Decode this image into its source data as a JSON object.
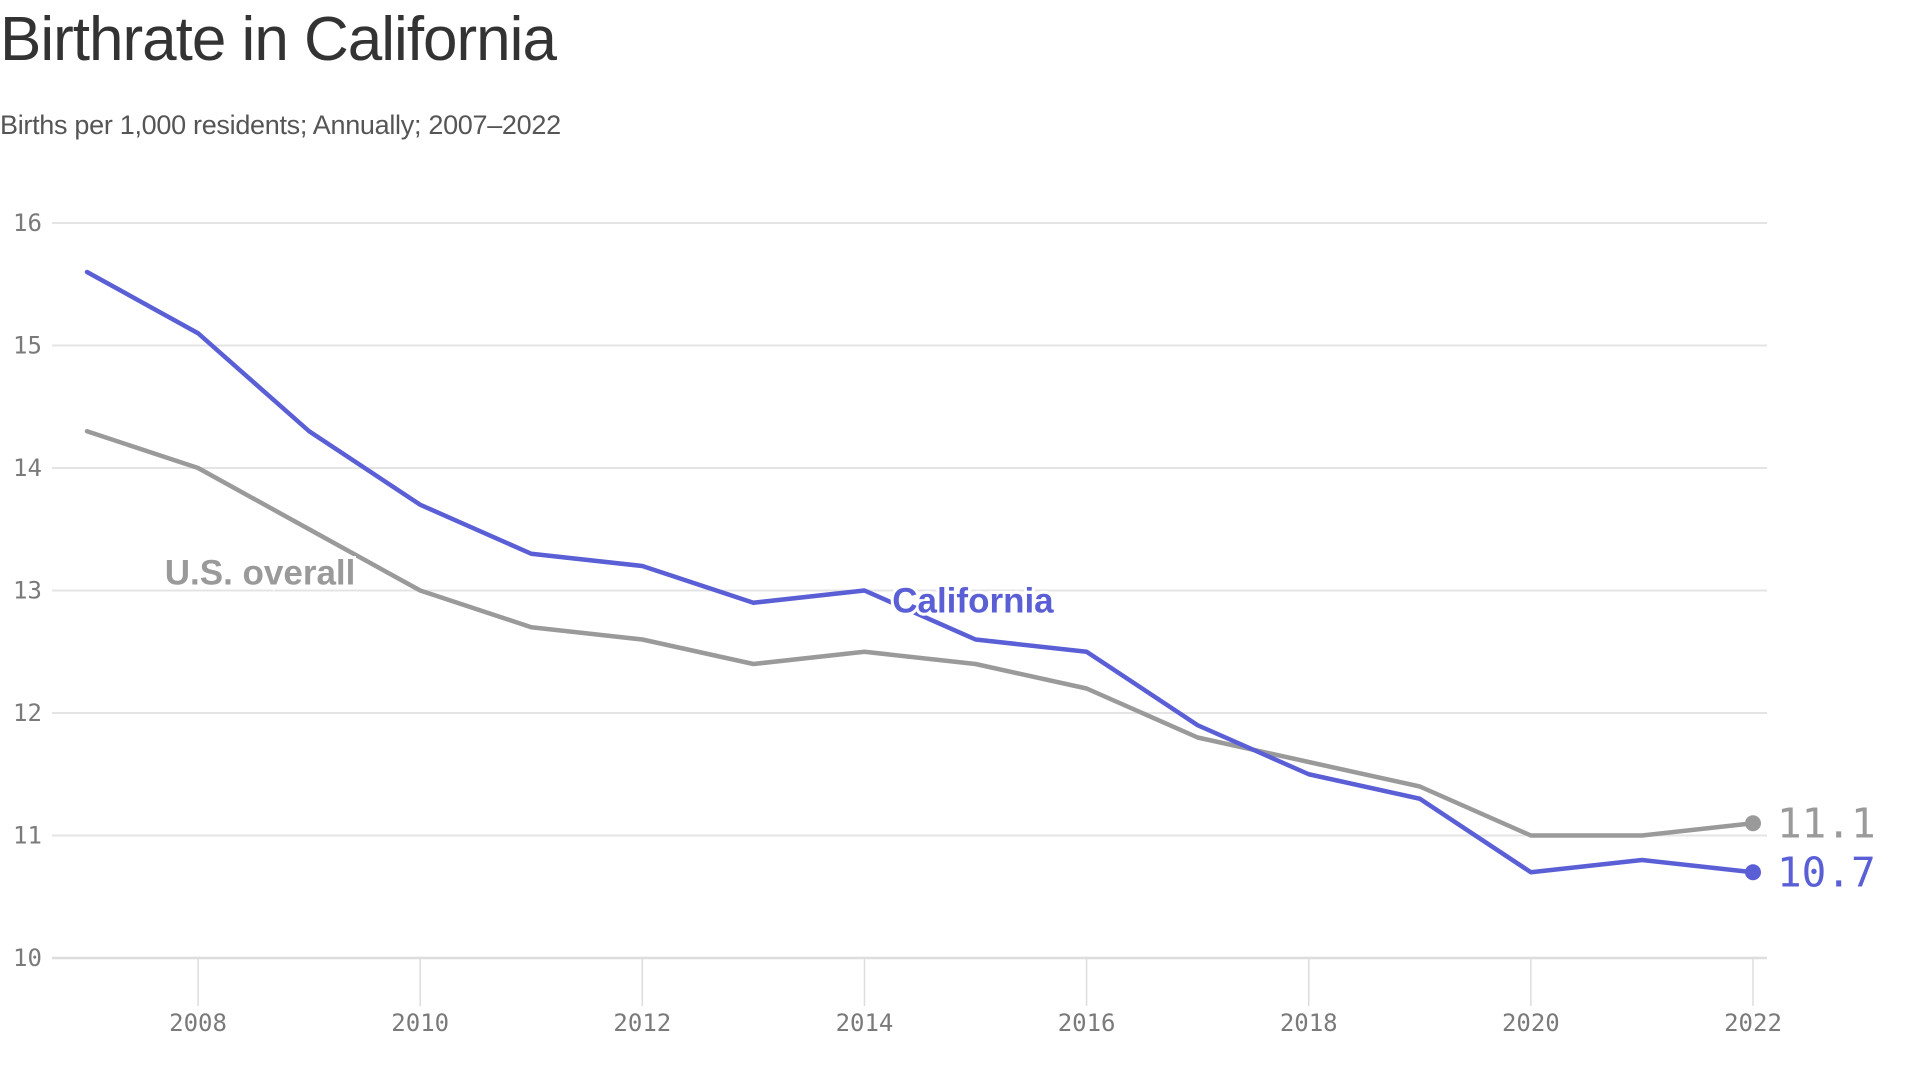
{
  "header": {
    "title": "Birthrate in California",
    "subtitle": "Births per 1,000 residents; Annually; 2007–2022"
  },
  "chart_data": {
    "type": "line",
    "title": "Birthrate in California",
    "subtitle": "Births per 1,000 residents; Annually; 2007–2022",
    "xlabel": "",
    "ylabel": "",
    "x": [
      2007,
      2008,
      2009,
      2010,
      2011,
      2012,
      2013,
      2014,
      2015,
      2016,
      2017,
      2018,
      2019,
      2020,
      2021,
      2022
    ],
    "xlim": [
      2007,
      2022
    ],
    "ylim": [
      10,
      16
    ],
    "x_ticks": [
      "2008",
      "2010",
      "2012",
      "2014",
      "2016",
      "2018",
      "2020",
      "2022"
    ],
    "y_ticks": [
      "10",
      "11",
      "12",
      "13",
      "14",
      "15",
      "16"
    ],
    "grid": true,
    "legend": "inline-labels",
    "series": [
      {
        "name": "California",
        "color": "#5b5fd6",
        "values": [
          15.6,
          15.1,
          14.3,
          13.7,
          13.3,
          13.2,
          12.9,
          13.0,
          12.6,
          12.5,
          11.9,
          11.5,
          11.3,
          10.7,
          10.8,
          10.7
        ],
        "end_label": "10.7"
      },
      {
        "name": "U.S. overall",
        "color": "#9a9a9a",
        "values": [
          14.3,
          14.0,
          13.5,
          13.0,
          12.7,
          12.6,
          12.4,
          12.5,
          12.4,
          12.2,
          11.8,
          11.6,
          11.4,
          11.0,
          11.0,
          11.1
        ],
        "end_label": "11.1"
      }
    ]
  }
}
